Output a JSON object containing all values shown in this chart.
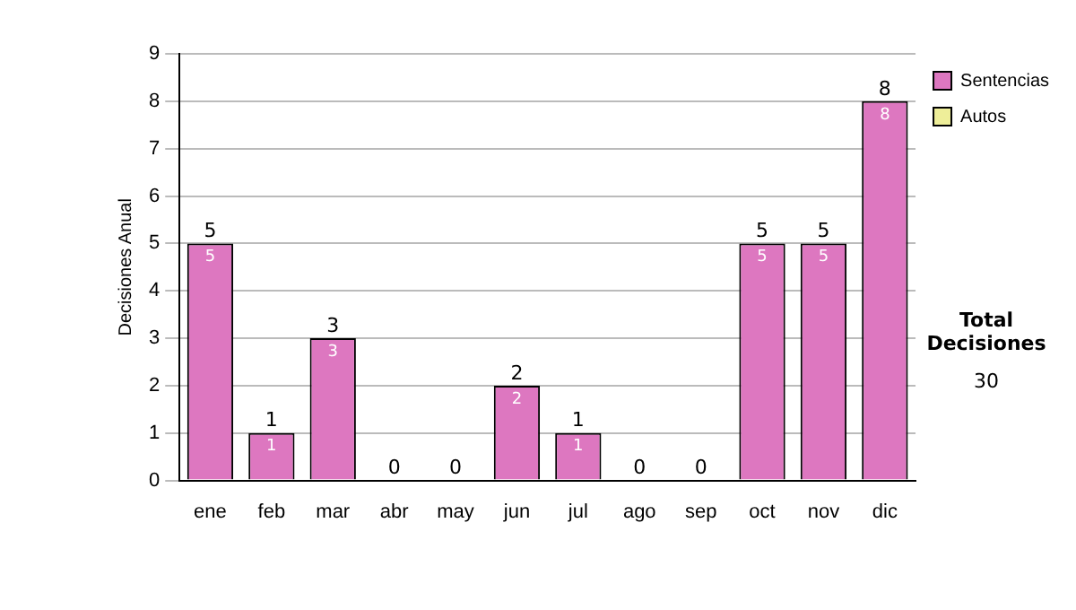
{
  "chart_data": {
    "type": "bar",
    "stacked": true,
    "ylabel": "Decisiones Anual",
    "categories": [
      "ene",
      "feb",
      "mar",
      "abr",
      "may",
      "jun",
      "jul",
      "ago",
      "sep",
      "oct",
      "nov",
      "dic"
    ],
    "series": [
      {
        "name": "Sentencias",
        "color": "#dd77c0",
        "values": [
          5,
          1,
          3,
          0,
          0,
          2,
          1,
          0,
          0,
          5,
          5,
          8
        ],
        "value_labels": [
          "5",
          "1",
          "3",
          null,
          null,
          "2",
          "1",
          null,
          null,
          "5",
          "5",
          "8"
        ]
      },
      {
        "name": "Autos",
        "color": "#eeee99",
        "values": [
          0,
          0,
          0,
          0,
          0,
          0,
          0,
          0,
          0,
          0,
          0,
          0
        ]
      }
    ],
    "totals": [
      "5",
      "1",
      "3",
      "0",
      "0",
      "2",
      "1",
      "0",
      "0",
      "5",
      "5",
      "8"
    ],
    "ylim": [
      0,
      9
    ],
    "yticks": [
      0,
      1,
      2,
      3,
      4,
      5,
      6,
      7,
      8,
      9
    ],
    "grid": "y",
    "legend": "right",
    "annotations": [
      "Total Decisiones",
      "30"
    ]
  }
}
